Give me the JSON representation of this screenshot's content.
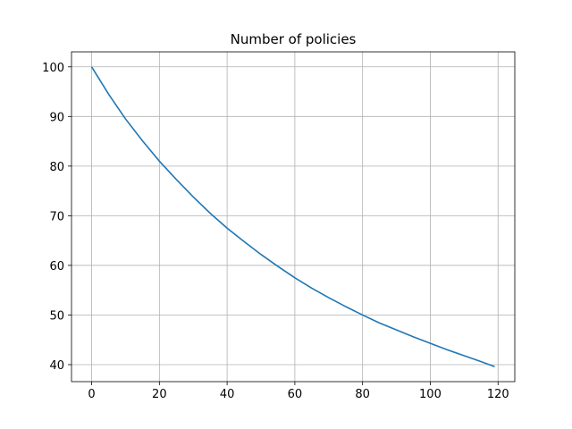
{
  "chart_data": {
    "type": "line",
    "title": "Number of policies",
    "x": [
      0,
      5,
      10,
      15,
      20,
      25,
      30,
      35,
      40,
      45,
      50,
      55,
      60,
      65,
      70,
      75,
      80,
      85,
      90,
      95,
      100,
      105,
      110,
      115,
      119
    ],
    "series": [
      {
        "color": "#1f77b4",
        "values": [
          100,
          94.5,
          89.5,
          85.1,
          81,
          77.3,
          73.8,
          70.5,
          67.5,
          64.8,
          62.2,
          59.8,
          57.5,
          55.4,
          53.5,
          51.7,
          50,
          48.4,
          47,
          45.6,
          44.3,
          43,
          41.8,
          40.6,
          39.6
        ]
      }
    ],
    "xlim": [
      -5.95,
      124.95
    ],
    "xticks": [
      0,
      20,
      40,
      60,
      80,
      100,
      120
    ],
    "ylim": [
      36.58,
      103.02
    ],
    "yticks": [
      40,
      50,
      60,
      70,
      80,
      90,
      100
    ],
    "grid": true
  }
}
